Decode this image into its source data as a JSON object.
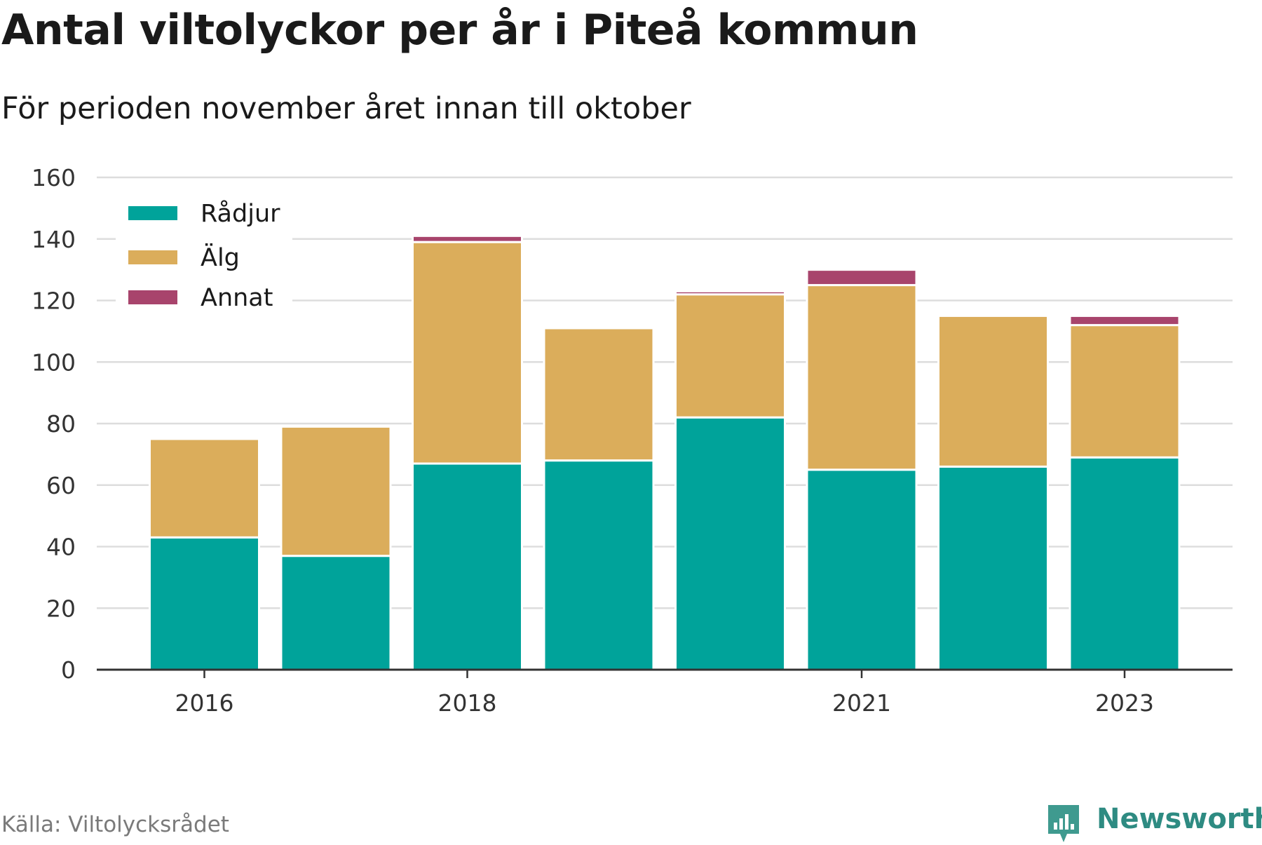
{
  "title": "Antal viltolyckor per år i Piteå kommun",
  "subtitle": "För perioden november året innan till oktober",
  "source": "Källa: Viltolycksrådet",
  "brand": "Newsworthy",
  "colors": {
    "Rådjur": "#00a39a",
    "Älg": "#dbad5b",
    "Annat": "#a8446c",
    "grid": "#dddddd",
    "axis": "#333333"
  },
  "chart_data": {
    "type": "bar",
    "stacked": true,
    "categories": [
      "2016",
      "2017",
      "2018",
      "2019",
      "2020",
      "2021",
      "2022",
      "2023"
    ],
    "x_tick_labels": [
      "2016",
      "",
      "2018",
      "",
      "",
      "2021",
      "",
      "2023"
    ],
    "series": [
      {
        "name": "Rådjur",
        "values": [
          43,
          37,
          67,
          68,
          82,
          65,
          66,
          69
        ]
      },
      {
        "name": "Älg",
        "values": [
          32,
          42,
          72,
          43,
          40,
          60,
          49,
          43
        ]
      },
      {
        "name": "Annat",
        "values": [
          0,
          0,
          2,
          0,
          1,
          5,
          0,
          3
        ]
      }
    ],
    "ylim": [
      0,
      160
    ],
    "yticks": [
      0,
      20,
      40,
      60,
      80,
      100,
      120,
      140,
      160
    ],
    "grid": true,
    "legend": "top-left",
    "xlabel": "",
    "ylabel": ""
  }
}
